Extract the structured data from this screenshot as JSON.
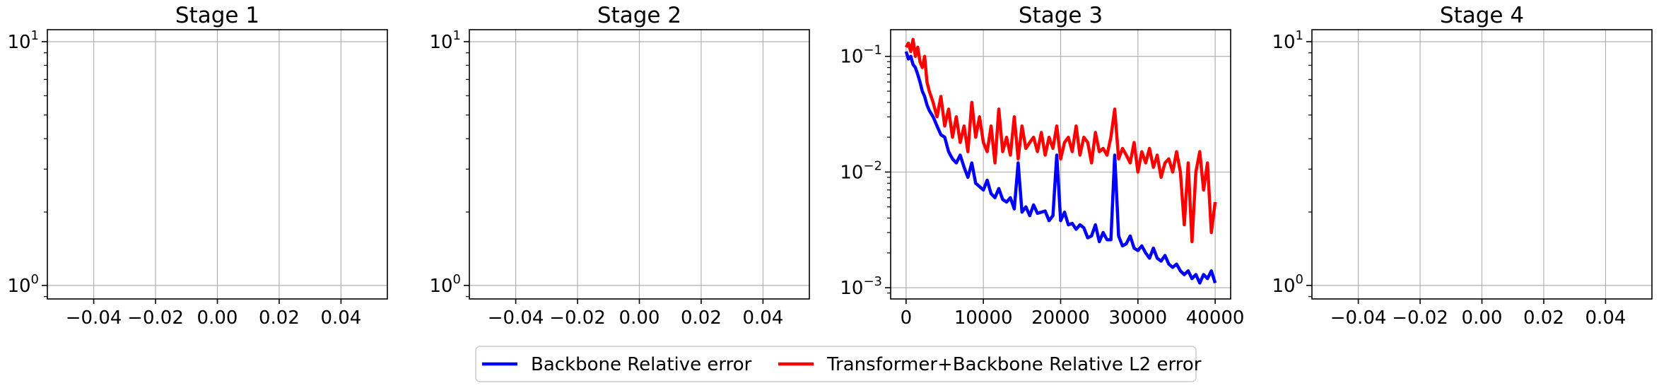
{
  "legend": {
    "placement": "bottom-center",
    "entries": [
      {
        "label": "Backbone Relative error",
        "color": "#0000ff"
      },
      {
        "label": "Transformer+Backbone Relative L2 error",
        "color": "#ff0000"
      }
    ]
  },
  "chart_data": [
    {
      "type": "line",
      "title": "Stage 1",
      "xlabel": "",
      "ylabel": "",
      "yscale": "log",
      "xlim": [
        -0.055,
        0.055
      ],
      "ylim": [
        0.88,
        11.2
      ],
      "grid": true,
      "xticks": [
        -0.04,
        -0.02,
        0.0,
        0.02,
        0.04
      ],
      "xtick_labels": [
        "−0.04",
        "−0.02",
        "0.00",
        "0.02",
        "0.04"
      ],
      "yticks": [
        1,
        10
      ],
      "ytick_labels": [
        {
          "base": "10",
          "exp": "0"
        },
        {
          "base": "10",
          "exp": "1"
        }
      ],
      "series": []
    },
    {
      "type": "line",
      "title": "Stage 2",
      "xlabel": "",
      "ylabel": "",
      "yscale": "log",
      "xlim": [
        -0.055,
        0.055
      ],
      "ylim": [
        0.88,
        11.2
      ],
      "grid": true,
      "xticks": [
        -0.04,
        -0.02,
        0.0,
        0.02,
        0.04
      ],
      "xtick_labels": [
        "−0.04",
        "−0.02",
        "0.00",
        "0.02",
        "0.04"
      ],
      "yticks": [
        1,
        10
      ],
      "ytick_labels": [
        {
          "base": "10",
          "exp": "0"
        },
        {
          "base": "10",
          "exp": "1"
        }
      ],
      "series": []
    },
    {
      "type": "line",
      "title": "Stage 3",
      "xlabel": "",
      "ylabel": "",
      "yscale": "log",
      "xlim": [
        -2000,
        42000
      ],
      "ylim": [
        0.0008,
        0.17
      ],
      "grid": true,
      "xticks": [
        0,
        10000,
        20000,
        30000,
        40000
      ],
      "xtick_labels": [
        "0",
        "10000",
        "20000",
        "30000",
        "40000"
      ],
      "yticks": [
        0.001,
        0.01,
        0.1
      ],
      "ytick_labels": [
        {
          "base": "10",
          "exp": "−3"
        },
        {
          "base": "10",
          "exp": "−2"
        },
        {
          "base": "10",
          "exp": "−1"
        }
      ],
      "series": [
        {
          "name": "Backbone Relative error",
          "color": "#0000ff",
          "x": [
            0,
            300,
            600,
            900,
            1200,
            1500,
            1800,
            2100,
            2400,
            2700,
            3000,
            3500,
            4000,
            4500,
            5000,
            5500,
            6000,
            6500,
            7000,
            7500,
            8000,
            8500,
            9000,
            9500,
            10000,
            10500,
            11000,
            11500,
            12000,
            12500,
            13000,
            13500,
            14000,
            14500,
            15000,
            15500,
            16000,
            16500,
            17000,
            17500,
            18000,
            18500,
            19000,
            19500,
            20000,
            20500,
            21000,
            21500,
            22000,
            22500,
            23000,
            23500,
            24000,
            24500,
            25000,
            25500,
            26000,
            26500,
            27000,
            27500,
            28000,
            28500,
            29000,
            29500,
            30000,
            30500,
            31000,
            31500,
            32000,
            32500,
            33000,
            33500,
            34000,
            34500,
            35000,
            35500,
            36000,
            36500,
            37000,
            37500,
            38000,
            38500,
            39000,
            39500,
            40000
          ],
          "y": [
            0.11,
            0.095,
            0.1,
            0.085,
            0.08,
            0.07,
            0.06,
            0.05,
            0.045,
            0.038,
            0.034,
            0.03,
            0.025,
            0.021,
            0.02,
            0.015,
            0.013,
            0.012,
            0.014,
            0.011,
            0.009,
            0.012,
            0.008,
            0.0075,
            0.007,
            0.0085,
            0.0065,
            0.006,
            0.0072,
            0.0058,
            0.0055,
            0.006,
            0.0048,
            0.012,
            0.0045,
            0.005,
            0.0042,
            0.0052,
            0.0044,
            0.0045,
            0.0046,
            0.0038,
            0.0042,
            0.014,
            0.0038,
            0.0045,
            0.0035,
            0.0036,
            0.0032,
            0.0035,
            0.0033,
            0.0027,
            0.0028,
            0.0035,
            0.0025,
            0.003,
            0.0026,
            0.0026,
            0.014,
            0.0028,
            0.0023,
            0.0024,
            0.0028,
            0.0022,
            0.0021,
            0.0023,
            0.002,
            0.0018,
            0.0022,
            0.0018,
            0.0017,
            0.0019,
            0.0016,
            0.0015,
            0.0016,
            0.0014,
            0.0013,
            0.0014,
            0.0012,
            0.0013,
            0.0011,
            0.0013,
            0.0012,
            0.0014,
            0.0011
          ]
        },
        {
          "name": "Transformer+Backbone Relative L2 error",
          "color": "#ff0000",
          "x": [
            0,
            300,
            600,
            900,
            1200,
            1500,
            1800,
            2100,
            2400,
            2700,
            3000,
            3500,
            4000,
            4500,
            5000,
            5500,
            6000,
            6500,
            7000,
            7500,
            8000,
            8500,
            9000,
            9500,
            10000,
            10500,
            11000,
            11500,
            12000,
            12500,
            13000,
            13500,
            14000,
            14500,
            15000,
            15500,
            16000,
            16500,
            17000,
            17500,
            18000,
            18500,
            19000,
            19500,
            20000,
            20500,
            21000,
            21500,
            22000,
            22500,
            23000,
            23500,
            24000,
            24500,
            25000,
            25500,
            26000,
            26500,
            27000,
            27500,
            28000,
            28500,
            29000,
            29500,
            30000,
            30500,
            31000,
            31500,
            32000,
            32500,
            33000,
            33500,
            34000,
            34500,
            35000,
            35500,
            36000,
            36500,
            37000,
            37500,
            38000,
            38500,
            39000,
            39500,
            40000
          ],
          "y": [
            0.12,
            0.13,
            0.11,
            0.14,
            0.1,
            0.12,
            0.09,
            0.08,
            0.1,
            0.06,
            0.05,
            0.04,
            0.03,
            0.045,
            0.025,
            0.035,
            0.02,
            0.03,
            0.018,
            0.025,
            0.015,
            0.04,
            0.02,
            0.03,
            0.018,
            0.015,
            0.025,
            0.012,
            0.035,
            0.015,
            0.02,
            0.014,
            0.03,
            0.013,
            0.025,
            0.016,
            0.018,
            0.02,
            0.015,
            0.022,
            0.014,
            0.02,
            0.016,
            0.025,
            0.013,
            0.018,
            0.02,
            0.015,
            0.025,
            0.014,
            0.02,
            0.018,
            0.012,
            0.022,
            0.015,
            0.016,
            0.014,
            0.02,
            0.035,
            0.013,
            0.016,
            0.014,
            0.012,
            0.018,
            0.01,
            0.015,
            0.012,
            0.016,
            0.011,
            0.014,
            0.009,
            0.012,
            0.013,
            0.01,
            0.015,
            0.01,
            0.0035,
            0.012,
            0.0025,
            0.01,
            0.015,
            0.007,
            0.012,
            0.003,
            0.0055
          ]
        }
      ]
    },
    {
      "type": "line",
      "title": "Stage 4",
      "xlabel": "",
      "ylabel": "",
      "yscale": "log",
      "xlim": [
        -0.055,
        0.055
      ],
      "ylim": [
        0.88,
        11.2
      ],
      "grid": true,
      "xticks": [
        -0.04,
        -0.02,
        0.0,
        0.02,
        0.04
      ],
      "xtick_labels": [
        "−0.04",
        "−0.02",
        "0.00",
        "0.02",
        "0.04"
      ],
      "yticks": [
        1,
        10
      ],
      "ytick_labels": [
        {
          "base": "10",
          "exp": "0"
        },
        {
          "base": "10",
          "exp": "1"
        }
      ],
      "series": []
    }
  ]
}
